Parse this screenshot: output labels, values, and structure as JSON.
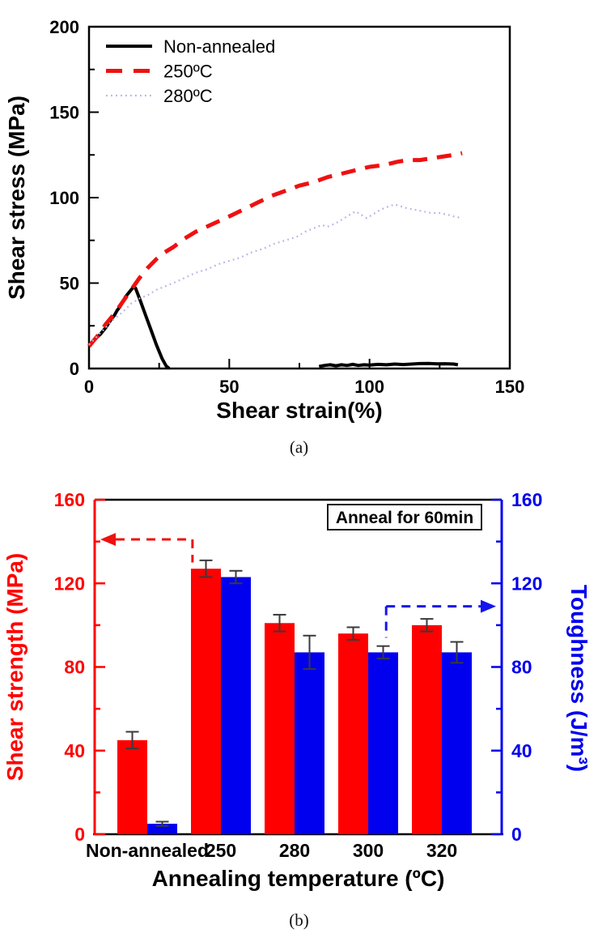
{
  "figure": {
    "caption_a": "(a)",
    "caption_b": "(b)"
  },
  "chart_data": [
    {
      "id": "shear-stress-strain",
      "type": "line",
      "xlabel": "Shear strain(%)",
      "ylabel": "Shear stress (MPa)",
      "xlim": [
        0,
        150
      ],
      "ylim": [
        0,
        200
      ],
      "xticks": [
        0,
        50,
        100,
        150
      ],
      "yticks": [
        0,
        50,
        100,
        150,
        200
      ],
      "minor_step_x": 25,
      "minor_step_y": 25,
      "grid": false,
      "legend_position": "top-left",
      "frame_color": "#000000",
      "series": [
        {
          "name": "Non-annealed",
          "color": "#000000",
          "style": "solid",
          "width": 4,
          "segments": [
            [
              [
                0,
                13
              ],
              [
                2,
                17
              ],
              [
                4,
                20
              ],
              [
                6,
                24
              ],
              [
                8,
                29
              ],
              [
                9,
                31
              ],
              [
                10,
                34
              ],
              [
                11,
                36
              ],
              [
                12,
                39
              ],
              [
                13,
                42
              ],
              [
                14,
                44
              ],
              [
                15,
                46
              ],
              [
                15.8,
                47.5
              ],
              [
                16.6,
                47
              ],
              [
                18,
                41
              ],
              [
                20,
                32
              ],
              [
                22,
                23
              ],
              [
                24,
                14
              ],
              [
                26,
                6
              ],
              [
                27.5,
                1.5
              ],
              [
                28.6,
                0
              ]
            ],
            [
              [
                82,
                1.2
              ],
              [
                84,
                1.8
              ],
              [
                86,
                2.2
              ],
              [
                88,
                1.6
              ],
              [
                90,
                2.2
              ],
              [
                92,
                1.8
              ],
              [
                94,
                2.4
              ],
              [
                96,
                1.8
              ],
              [
                98,
                2.2
              ],
              [
                100,
                2
              ],
              [
                103,
                2.4
              ],
              [
                106,
                2.2
              ],
              [
                109,
                2.6
              ],
              [
                112,
                2.3
              ],
              [
                115,
                2.6
              ],
              [
                118,
                2.9
              ],
              [
                121,
                3
              ],
              [
                124,
                2.7
              ],
              [
                127,
                2.8
              ],
              [
                130,
                2.6
              ],
              [
                131.5,
                2.2
              ]
            ]
          ]
        },
        {
          "name": "250ºC",
          "color": "#ee1111",
          "style": "dashed",
          "width": 5,
          "segments": [
            [
              [
                0,
                13
              ],
              [
                3,
                19
              ],
              [
                6,
                26
              ],
              [
                9,
                32
              ],
              [
                12,
                39
              ],
              [
                15,
                46
              ],
              [
                18,
                53
              ],
              [
                21,
                59
              ],
              [
                24,
                64
              ],
              [
                27,
                68
              ],
              [
                30,
                71
              ],
              [
                34,
                76
              ],
              [
                38,
                80
              ],
              [
                42,
                83
              ],
              [
                46,
                86
              ],
              [
                50,
                89
              ],
              [
                55,
                93
              ],
              [
                60,
                97
              ],
              [
                65,
                101
              ],
              [
                70,
                104
              ],
              [
                75,
                107
              ],
              [
                80,
                109
              ],
              [
                85,
                112
              ],
              [
                90,
                114
              ],
              [
                95,
                116
              ],
              [
                100,
                118
              ],
              [
                105,
                119
              ],
              [
                110,
                121
              ],
              [
                114,
                122
              ],
              [
                118,
                122
              ],
              [
                122,
                123
              ],
              [
                126,
                124
              ],
              [
                130,
                125
              ],
              [
                133,
                126
              ]
            ]
          ]
        },
        {
          "name": "280ºC",
          "color": "#b4b4e8",
          "style": "dotted",
          "width": 2.2,
          "segments": [
            [
              [
                0,
                14
              ],
              [
                3,
                19
              ],
              [
                6,
                24
              ],
              [
                9,
                29
              ],
              [
                12,
                33
              ],
              [
                15,
                38
              ],
              [
                18,
                41
              ],
              [
                21,
                43
              ],
              [
                24,
                46
              ],
              [
                27,
                48
              ],
              [
                30,
                50
              ],
              [
                34,
                53
              ],
              [
                38,
                56
              ],
              [
                42,
                58
              ],
              [
                46,
                61
              ],
              [
                50,
                63
              ],
              [
                54,
                65
              ],
              [
                58,
                68
              ],
              [
                62,
                70
              ],
              [
                66,
                73
              ],
              [
                70,
                75
              ],
              [
                74,
                77
              ],
              [
                77,
                80
              ],
              [
                80,
                82
              ],
              [
                83,
                84
              ],
              [
                85,
                83
              ],
              [
                88,
                85
              ],
              [
                91,
                88
              ],
              [
                93,
                90
              ],
              [
                95,
                92
              ],
              [
                97,
                90
              ],
              [
                99,
                88
              ],
              [
                101,
                90
              ],
              [
                104,
                93
              ],
              [
                107,
                95
              ],
              [
                109,
                96
              ],
              [
                111,
                95
              ],
              [
                113,
                94
              ],
              [
                116,
                93
              ],
              [
                119,
                92
              ],
              [
                122,
                91
              ],
              [
                125,
                91
              ],
              [
                128,
                90
              ],
              [
                130,
                89
              ],
              [
                133,
                88
              ]
            ]
          ]
        }
      ]
    },
    {
      "id": "strength-toughness",
      "type": "bar",
      "annotation": "Anneal for 60min",
      "xlabel": "Annealing temperature (ºC)",
      "categories": [
        "Non-annealed",
        "250",
        "280",
        "300",
        "320"
      ],
      "left_axis": {
        "label": "Shear strength (MPa)",
        "color": "#ff0000",
        "lim": [
          0,
          160
        ],
        "ticks": [
          0,
          40,
          80,
          120,
          160
        ],
        "minor_step": 20
      },
      "right_axis": {
        "label": "Toughness (J/m³)",
        "color": "#0000ee",
        "lim": [
          0,
          160
        ],
        "ticks": [
          0,
          40,
          80,
          120,
          160
        ],
        "minor_step": 20
      },
      "error_bar_color": "#3a3a3a",
      "frame_color": "#000000",
      "series": [
        {
          "name": "Shear strength",
          "axis": "left",
          "color": "#ff0000",
          "values": [
            45,
            127,
            101,
            96,
            100
          ],
          "errors": [
            4,
            4,
            4,
            3,
            3
          ]
        },
        {
          "name": "Toughness",
          "axis": "right",
          "color": "#0000ee",
          "values": [
            5,
            123,
            87,
            87,
            87
          ],
          "errors": [
            1,
            3,
            8,
            3,
            5
          ]
        }
      ],
      "arrows": [
        {
          "name": "points-to-left-axis",
          "color": "#ee1111",
          "target": "left",
          "y": 141,
          "drop_to": 130,
          "elbow_category": 1
        },
        {
          "name": "points-to-right-axis",
          "color": "#1515ee",
          "target": "right",
          "y": 109,
          "drop_to": 94,
          "elbow_category": 3
        }
      ]
    }
  ]
}
